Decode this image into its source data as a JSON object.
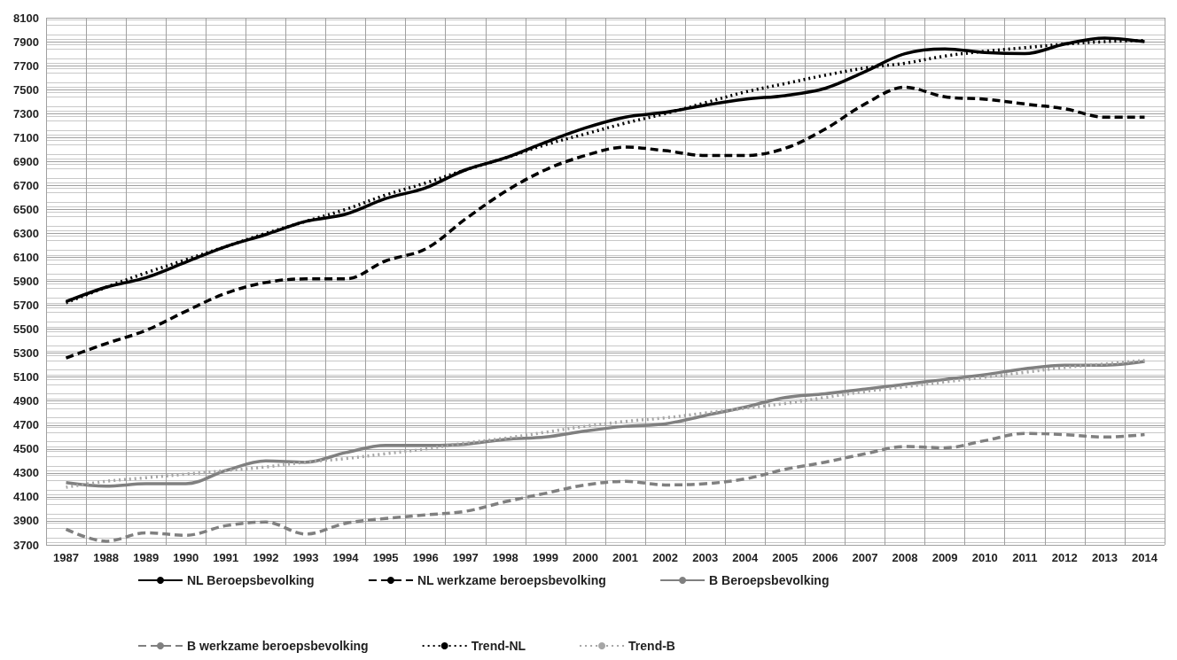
{
  "chart_data": {
    "type": "line",
    "categories": [
      "1987",
      "1988",
      "1989",
      "1990",
      "1991",
      "1992",
      "1993",
      "1994",
      "1995",
      "1996",
      "1997",
      "1998",
      "1999",
      "2000",
      "2001",
      "2002",
      "2003",
      "2004",
      "2005",
      "2006",
      "2007",
      "2008",
      "2009",
      "2010",
      "2011",
      "2012",
      "2013",
      "2014"
    ],
    "series": [
      {
        "name": "NL Beroepsbevolking",
        "color": "#000000",
        "line_style": "solid",
        "values": [
          5730,
          5850,
          5930,
          6060,
          6190,
          6290,
          6400,
          6460,
          6590,
          6680,
          6830,
          6930,
          7060,
          7180,
          7270,
          7310,
          7370,
          7420,
          7450,
          7510,
          7650,
          7800,
          7840,
          7810,
          7800,
          7880,
          7930,
          7900
        ]
      },
      {
        "name": "NL werkzame beroepsbevolking",
        "color": "#000000",
        "line_style": "dashed",
        "values": [
          5260,
          5380,
          5490,
          5650,
          5800,
          5890,
          5920,
          5920,
          6070,
          6170,
          6420,
          6650,
          6830,
          6950,
          7020,
          6990,
          6950,
          6950,
          7010,
          7170,
          7380,
          7520,
          7440,
          7420,
          7380,
          7340,
          7270,
          7270
        ]
      },
      {
        "name": "B Beroepsbevolking",
        "color": "#808080",
        "line_style": "solid",
        "values": [
          4220,
          4190,
          4210,
          4210,
          4320,
          4400,
          4390,
          4470,
          4530,
          4530,
          4540,
          4580,
          4600,
          4650,
          4690,
          4710,
          4780,
          4850,
          4930,
          4960,
          5000,
          5040,
          5080,
          5120,
          5170,
          5200,
          5200,
          5230
        ]
      },
      {
        "name": "B werkzame beroepsbevolking",
        "color": "#808080",
        "line_style": "dashed",
        "values": [
          3830,
          3730,
          3800,
          3780,
          3860,
          3890,
          3790,
          3880,
          3920,
          3950,
          3980,
          4060,
          4130,
          4200,
          4230,
          4200,
          4210,
          4250,
          4330,
          4390,
          4460,
          4520,
          4510,
          4570,
          4630,
          4620,
          4600,
          4620
        ]
      },
      {
        "name": "Trend-NL",
        "color": "#000000",
        "line_style": "dotted",
        "values": [
          5720,
          5850,
          5970,
          6080,
          6190,
          6300,
          6400,
          6500,
          6620,
          6720,
          6830,
          6930,
          7040,
          7130,
          7220,
          7300,
          7390,
          7480,
          7550,
          7620,
          7680,
          7720,
          7780,
          7820,
          7850,
          7880,
          7900,
          7910
        ]
      },
      {
        "name": "Trend-B",
        "color": "#a6a6a6",
        "line_style": "dotted",
        "values": [
          4180,
          4230,
          4260,
          4290,
          4320,
          4350,
          4390,
          4420,
          4460,
          4500,
          4550,
          4590,
          4640,
          4690,
          4730,
          4760,
          4800,
          4840,
          4880,
          4930,
          4980,
          5020,
          5060,
          5100,
          5140,
          5180,
          5210,
          5240
        ]
      }
    ],
    "ylim": [
      3700,
      8100
    ],
    "yticks": [
      3700,
      3900,
      4100,
      4300,
      4500,
      4700,
      4900,
      5100,
      5300,
      5500,
      5700,
      5900,
      6100,
      6300,
      6500,
      6700,
      6900,
      7100,
      7300,
      7500,
      7700,
      7900,
      8100
    ],
    "grid": true,
    "legend": "bottom",
    "marker": "none"
  }
}
